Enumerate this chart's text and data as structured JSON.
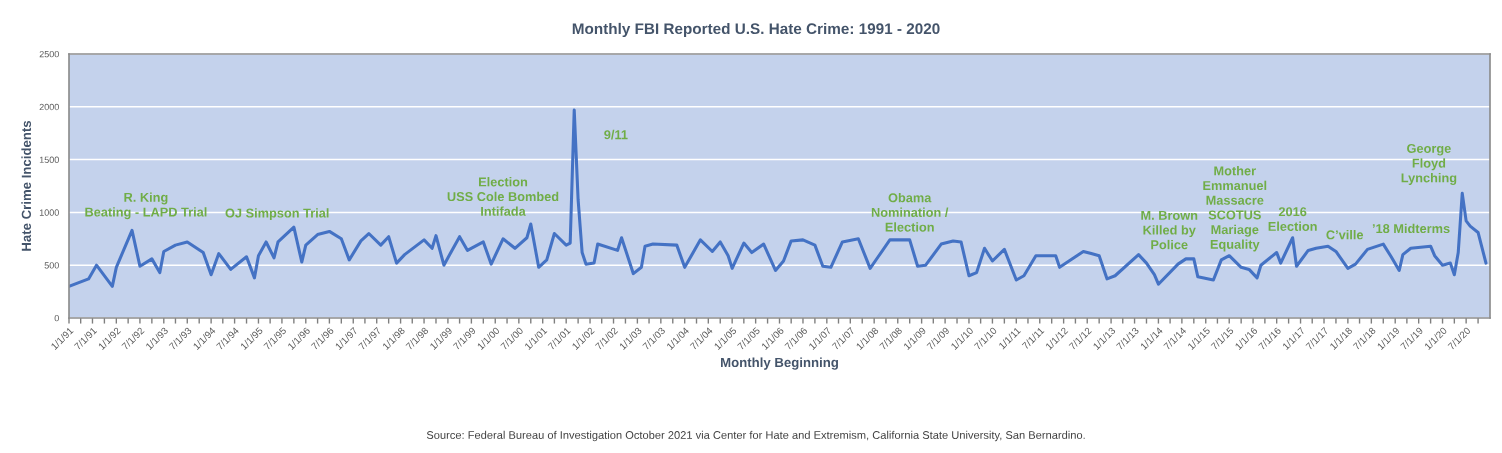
{
  "chart_data": {
    "type": "line",
    "title": "Monthly FBI Reported U.S. Hate Crime: 1991 - 2020",
    "xlabel": "Monthly Beginning",
    "ylabel": "Hate Crime Incidents",
    "x": [
      "1991-01",
      "1991-06",
      "1991-08",
      "1991-12",
      "1992-01",
      "1992-05",
      "1992-07",
      "1992-10",
      "1992-12",
      "1993-01",
      "1993-04",
      "1993-07",
      "1993-11",
      "1994-01",
      "1994-03",
      "1994-06",
      "1994-10",
      "1994-12",
      "1995-01",
      "1995-03",
      "1995-05",
      "1995-06",
      "1995-10",
      "1995-12",
      "1996-01",
      "1996-04",
      "1996-07",
      "1996-10",
      "1996-12",
      "1997-03",
      "1997-05",
      "1997-08",
      "1997-10",
      "1997-12",
      "1998-02",
      "1998-07",
      "1998-09",
      "1998-10",
      "1998-12",
      "1999-02",
      "1999-04",
      "1999-06",
      "1999-10",
      "1999-12",
      "2000-03",
      "2000-06",
      "2000-09",
      "2000-10",
      "2000-12",
      "2001-02",
      "2001-04",
      "2001-07",
      "2001-08",
      "2001-09",
      "2001-10",
      "2001-11",
      "2001-12",
      "2002-02",
      "2002-03",
      "2002-08",
      "2002-09",
      "2002-12",
      "2003-02",
      "2003-03",
      "2003-05",
      "2003-11",
      "2004-01",
      "2004-05",
      "2004-08",
      "2004-10",
      "2004-12",
      "2005-01",
      "2005-04",
      "2005-06",
      "2005-09",
      "2005-12",
      "2006-02",
      "2006-04",
      "2006-07",
      "2006-10",
      "2006-12",
      "2007-02",
      "2007-05",
      "2007-09",
      "2007-12",
      "2008-02",
      "2008-05",
      "2008-10",
      "2008-12",
      "2009-02",
      "2009-06",
      "2009-09",
      "2009-11",
      "2010-01",
      "2010-03",
      "2010-05",
      "2010-07",
      "2010-10",
      "2011-01",
      "2011-03",
      "2011-06",
      "2011-11",
      "2011-12",
      "2012-06",
      "2012-08",
      "2012-10",
      "2012-12",
      "2013-02",
      "2013-08",
      "2013-10",
      "2013-12",
      "2014-01",
      "2014-06",
      "2014-08",
      "2014-10",
      "2014-11",
      "2015-03",
      "2015-05",
      "2015-07",
      "2015-10",
      "2015-12",
      "2016-02",
      "2016-03",
      "2016-07",
      "2016-08",
      "2016-11",
      "2016-12",
      "2017-03",
      "2017-05",
      "2017-08",
      "2017-10",
      "2018-01",
      "2018-03",
      "2018-06",
      "2018-10",
      "2018-12",
      "2019-02",
      "2019-03",
      "2019-05",
      "2019-10",
      "2019-11",
      "2020-01",
      "2020-03",
      "2020-04",
      "2020-05",
      "2020-06",
      "2020-07",
      "2020-08",
      "2020-10",
      "2020-12"
    ],
    "series": [
      {
        "color": "#4472c4",
        "values": [
          300,
          370,
          500,
          300,
          480,
          830,
          490,
          560,
          430,
          630,
          690,
          720,
          620,
          410,
          610,
          460,
          580,
          380,
          590,
          720,
          570,
          720,
          860,
          530,
          690,
          790,
          820,
          750,
          550,
          730,
          800,
          690,
          770,
          520,
          600,
          740,
          660,
          780,
          500,
          640,
          770,
          640,
          720,
          510,
          750,
          660,
          760,
          890,
          480,
          550,
          800,
          690,
          710,
          1970,
          1120,
          620,
          510,
          520,
          700,
          640,
          760,
          420,
          480,
          680,
          700,
          690,
          480,
          740,
          630,
          720,
          590,
          470,
          710,
          620,
          700,
          450,
          540,
          730,
          740,
          690,
          490,
          480,
          720,
          750,
          470,
          580,
          740,
          740,
          490,
          500,
          700,
          730,
          720,
          400,
          430,
          660,
          540,
          650,
          360,
          400,
          590,
          590,
          480,
          630,
          610,
          590,
          370,
          400,
          600,
          520,
          410,
          320,
          510,
          560,
          560,
          390,
          360,
          550,
          590,
          480,
          460,
          380,
          500,
          620,
          520,
          760,
          490,
          640,
          660,
          680,
          630,
          470,
          510,
          650,
          700,
          580,
          450,
          600,
          660,
          680,
          590,
          500,
          520,
          410,
          620,
          1180,
          920,
          870,
          810,
          520
        ]
      }
    ],
    "xlim": [
      "1991-01",
      "2021-01"
    ],
    "xticks": [
      {
        "value": "1991-01",
        "label": "1/1/91"
      },
      {
        "value": "1991-04",
        "label": null
      },
      {
        "value": "1991-07",
        "label": "7/1/91"
      },
      {
        "value": "1991-10",
        "label": null
      },
      {
        "value": "1992-01",
        "label": "1/1/92"
      },
      {
        "value": "1992-04",
        "label": null
      },
      {
        "value": "1992-07",
        "label": "7/1/92"
      },
      {
        "value": "1992-10",
        "label": null
      },
      {
        "value": "1993-01",
        "label": "1/1/93"
      },
      {
        "value": "1993-04",
        "label": null
      },
      {
        "value": "1993-07",
        "label": "7/1/93"
      },
      {
        "value": "1993-10",
        "label": null
      },
      {
        "value": "1994-01",
        "label": "1/1/94"
      },
      {
        "value": "1994-04",
        "label": null
      },
      {
        "value": "1994-07",
        "label": "7/1/94"
      },
      {
        "value": "1994-10",
        "label": null
      },
      {
        "value": "1995-01",
        "label": "1/1/95"
      },
      {
        "value": "1995-04",
        "label": null
      },
      {
        "value": "1995-07",
        "label": "7/1/95"
      },
      {
        "value": "1995-10",
        "label": null
      },
      {
        "value": "1996-01",
        "label": "1/1/96"
      },
      {
        "value": "1996-04",
        "label": null
      },
      {
        "value": "1996-07",
        "label": "7/1/96"
      },
      {
        "value": "1996-10",
        "label": null
      },
      {
        "value": "1997-01",
        "label": "1/1/97"
      },
      {
        "value": "1997-04",
        "label": null
      },
      {
        "value": "1997-07",
        "label": "7/1/97"
      },
      {
        "value": "1997-10",
        "label": null
      },
      {
        "value": "1998-01",
        "label": "1/1/98"
      },
      {
        "value": "1998-04",
        "label": null
      },
      {
        "value": "1998-07",
        "label": "7/1/98"
      },
      {
        "value": "1998-10",
        "label": null
      },
      {
        "value": "1999-01",
        "label": "1/1/99"
      },
      {
        "value": "1999-04",
        "label": null
      },
      {
        "value": "1999-07",
        "label": "7/1/99"
      },
      {
        "value": "1999-10",
        "label": null
      },
      {
        "value": "2000-01",
        "label": "1/1/00"
      },
      {
        "value": "2000-04",
        "label": null
      },
      {
        "value": "2000-07",
        "label": "7/1/00"
      },
      {
        "value": "2000-10",
        "label": null
      },
      {
        "value": "2001-01",
        "label": "1/1/01"
      },
      {
        "value": "2001-04",
        "label": null
      },
      {
        "value": "2001-07",
        "label": "7/1/01"
      },
      {
        "value": "2001-10",
        "label": null
      },
      {
        "value": "2002-01",
        "label": "1/1/02"
      },
      {
        "value": "2002-04",
        "label": null
      },
      {
        "value": "2002-07",
        "label": "7/1/02"
      },
      {
        "value": "2002-10",
        "label": null
      },
      {
        "value": "2003-01",
        "label": "1/1/03"
      },
      {
        "value": "2003-04",
        "label": null
      },
      {
        "value": "2003-07",
        "label": "7/1/03"
      },
      {
        "value": "2003-10",
        "label": null
      },
      {
        "value": "2004-01",
        "label": "1/1/04"
      },
      {
        "value": "2004-04",
        "label": null
      },
      {
        "value": "2004-07",
        "label": "7/1/04"
      },
      {
        "value": "2004-10",
        "label": null
      },
      {
        "value": "2005-01",
        "label": "1/1/05"
      },
      {
        "value": "2005-04",
        "label": null
      },
      {
        "value": "2005-07",
        "label": "7/1/05"
      },
      {
        "value": "2005-10",
        "label": null
      },
      {
        "value": "2006-01",
        "label": "1/1/06"
      },
      {
        "value": "2006-04",
        "label": null
      },
      {
        "value": "2006-07",
        "label": "7/1/06"
      },
      {
        "value": "2006-10",
        "label": null
      },
      {
        "value": "2007-01",
        "label": "1/1/07"
      },
      {
        "value": "2007-04",
        "label": null
      },
      {
        "value": "2007-07",
        "label": "7/1/07"
      },
      {
        "value": "2007-10",
        "label": null
      },
      {
        "value": "2008-01",
        "label": "1/1/08"
      },
      {
        "value": "2008-04",
        "label": null
      },
      {
        "value": "2008-07",
        "label": "7/1/08"
      },
      {
        "value": "2008-10",
        "label": null
      },
      {
        "value": "2009-01",
        "label": "1/1/09"
      },
      {
        "value": "2009-04",
        "label": null
      },
      {
        "value": "2009-07",
        "label": "7/1/09"
      },
      {
        "value": "2009-10",
        "label": null
      },
      {
        "value": "2010-01",
        "label": "1/1/10"
      },
      {
        "value": "2010-04",
        "label": null
      },
      {
        "value": "2010-07",
        "label": "7/1/10"
      },
      {
        "value": "2010-10",
        "label": null
      },
      {
        "value": "2011-01",
        "label": "1/1/11"
      },
      {
        "value": "2011-04",
        "label": null
      },
      {
        "value": "2011-07",
        "label": "7/1/11"
      },
      {
        "value": "2011-10",
        "label": null
      },
      {
        "value": "2012-01",
        "label": "1/1/12"
      },
      {
        "value": "2012-04",
        "label": null
      },
      {
        "value": "2012-07",
        "label": "7/1/12"
      },
      {
        "value": "2012-10",
        "label": null
      },
      {
        "value": "2013-01",
        "label": "1/1/13"
      },
      {
        "value": "2013-04",
        "label": null
      },
      {
        "value": "2013-07",
        "label": "7/1/13"
      },
      {
        "value": "2013-10",
        "label": null
      },
      {
        "value": "2014-01",
        "label": "1/1/14"
      },
      {
        "value": "2014-04",
        "label": null
      },
      {
        "value": "2014-07",
        "label": "7/1/14"
      },
      {
        "value": "2014-10",
        "label": null
      },
      {
        "value": "2015-01",
        "label": "1/1/15"
      },
      {
        "value": "2015-04",
        "label": null
      },
      {
        "value": "2015-07",
        "label": "7/1/15"
      },
      {
        "value": "2015-10",
        "label": null
      },
      {
        "value": "2016-01",
        "label": "1/1/16"
      },
      {
        "value": "2016-04",
        "label": null
      },
      {
        "value": "2016-07",
        "label": "7/1/16"
      },
      {
        "value": "2016-10",
        "label": null
      },
      {
        "value": "2017-01",
        "label": "1/1/17"
      },
      {
        "value": "2017-04",
        "label": null
      },
      {
        "value": "2017-07",
        "label": "7/1/17"
      },
      {
        "value": "2017-10",
        "label": null
      },
      {
        "value": "2018-01",
        "label": "1/1/18"
      },
      {
        "value": "2018-04",
        "label": null
      },
      {
        "value": "2018-07",
        "label": "7/1/18"
      },
      {
        "value": "2018-10",
        "label": null
      },
      {
        "value": "2019-01",
        "label": "1/1/19"
      },
      {
        "value": "2019-04",
        "label": null
      },
      {
        "value": "2019-07",
        "label": "7/1/19"
      },
      {
        "value": "2019-10",
        "label": null
      },
      {
        "value": "2020-01",
        "label": "1/1/20"
      },
      {
        "value": "2020-04",
        "label": null
      },
      {
        "value": "2020-07",
        "label": "7/1/20"
      },
      {
        "value": "2020-10",
        "label": null
      }
    ],
    "ylim": [
      0,
      2500
    ],
    "yticks": [
      0,
      500,
      1000,
      1500,
      2000,
      2500
    ],
    "grid": "y",
    "annotations": [
      {
        "text": "R. King\nBeating - LAPD Trial",
        "x": "1992-05",
        "y": 830
      },
      {
        "text": "OJ Simpson Trial",
        "x": "1995-10",
        "y": 860
      },
      {
        "text": "Election\nUSS Cole Bombed\nIntifada",
        "x": "2000-10",
        "y": 890
      },
      {
        "text": "9/11",
        "x": "2001-09",
        "y": 1970
      },
      {
        "text": "Obama\nNomination /\nElection",
        "x": "2008-10",
        "y": 740
      },
      {
        "text": "M. Brown\nKilled by\nPolice",
        "x": "2014-08",
        "y": 560
      },
      {
        "text": "Mother\nEmmanuel\nMassacre\nSCOTUS\nMariage\nEquality",
        "x": "2015-07",
        "y": 590
      },
      {
        "text": "2016\nElection",
        "x": "2016-11",
        "y": 760
      },
      {
        "text": "C’ville",
        "x": "2017-08",
        "y": 680
      },
      {
        "text": "’18 Midterms",
        "x": "2018-10",
        "y": 700
      },
      {
        "text": "George\nFloyd\nLynching",
        "x": "2020-06",
        "y": 1180
      },
      "Source: Federal Bureau of Investigation October 2021 via Center for Hate and Extremism, California State University, San Bernardino."
    ]
  }
}
